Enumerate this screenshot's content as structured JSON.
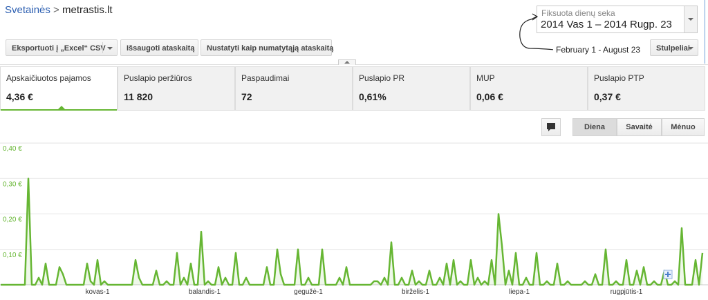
{
  "breadcrumb": {
    "parent": "Svetainės",
    "separator": ">",
    "current": "metrastis.lt"
  },
  "toolbar": {
    "export": "Eksportuoti į „Excel“ CSV",
    "save": "Išsaugoti ataskaitą",
    "set_default": "Nustatyti kaip numatytąją ataskaitą"
  },
  "date_range": {
    "label": "Fiksuota dienų seka",
    "value": "2014 Vas 1 – 2014 Rugp. 23"
  },
  "annotation": "February 1 - August 23",
  "columns_button": "Stulpeliai",
  "metrics": [
    {
      "label": "Apskaičiuotos pajamos",
      "value": "4,36 €"
    },
    {
      "label": "Puslapio peržiūros",
      "value": "11 820"
    },
    {
      "label": "Paspaudimai",
      "value": "72"
    },
    {
      "label": "Puslapio PR",
      "value": "0,61%"
    },
    {
      "label": "MUP",
      "value": "0,06 €"
    },
    {
      "label": "Puslapio PTP",
      "value": "0,37 €"
    }
  ],
  "granularity": [
    "Diena",
    "Savaitė",
    "Mėnuo"
  ],
  "chart_data": {
    "type": "line",
    "color": "#66b633",
    "grid": true,
    "ylim": [
      0,
      0.4
    ],
    "yticks": [
      {
        "value": 0.1,
        "label": "0,10 €"
      },
      {
        "value": 0.2,
        "label": "0,20 €"
      },
      {
        "value": 0.3,
        "label": "0,30 €"
      },
      {
        "value": 0.4,
        "label": "0,40 €"
      }
    ],
    "categories": [
      null,
      null,
      null,
      null,
      null,
      null,
      null,
      null,
      null,
      null,
      null,
      null,
      null,
      null,
      null,
      null,
      null,
      null,
      null,
      null,
      null,
      null,
      null,
      null,
      null,
      null,
      null,
      null,
      "kovas-1",
      null,
      null,
      null,
      null,
      null,
      null,
      null,
      null,
      null,
      null,
      null,
      null,
      null,
      null,
      null,
      null,
      null,
      null,
      null,
      null,
      null,
      null,
      null,
      null,
      null,
      null,
      null,
      null,
      null,
      null,
      "balandis-1",
      null,
      null,
      null,
      null,
      null,
      null,
      null,
      null,
      null,
      null,
      null,
      null,
      null,
      null,
      null,
      null,
      null,
      null,
      null,
      null,
      null,
      null,
      null,
      null,
      null,
      null,
      null,
      null,
      null,
      "gegužė-1",
      null,
      null,
      null,
      null,
      null,
      null,
      null,
      null,
      null,
      null,
      null,
      null,
      null,
      null,
      null,
      null,
      null,
      null,
      null,
      null,
      null,
      null,
      null,
      null,
      null,
      null,
      null,
      null,
      null,
      null,
      "birželis-1",
      null,
      null,
      null,
      null,
      null,
      null,
      null,
      null,
      null,
      null,
      null,
      null,
      null,
      null,
      null,
      null,
      null,
      null,
      null,
      null,
      null,
      null,
      null,
      null,
      null,
      null,
      null,
      null,
      null,
      "liepa-1",
      null,
      null,
      null,
      null,
      null,
      null,
      null,
      null,
      null,
      null,
      null,
      null,
      null,
      null,
      null,
      null,
      null,
      null,
      null,
      null,
      null,
      null,
      null,
      null,
      null,
      null,
      null,
      null,
      null,
      null,
      "rugpjūtis-1",
      null,
      null,
      null,
      null,
      null,
      null,
      null,
      null,
      null,
      null,
      null,
      null,
      null,
      null,
      null,
      null,
      null,
      null,
      null,
      null,
      null,
      null
    ],
    "values": [
      0,
      0,
      0,
      0,
      0,
      0,
      0,
      0,
      0.3,
      0,
      0,
      0.02,
      0,
      0.06,
      0,
      0,
      0,
      0.05,
      0.03,
      0,
      0,
      0,
      0,
      0,
      0,
      0.06,
      0.01,
      0,
      0.07,
      0,
      0.01,
      0,
      0,
      0,
      0,
      0,
      0,
      0,
      0,
      0.07,
      0.02,
      0,
      0,
      0,
      0,
      0.04,
      0,
      0,
      0.01,
      0,
      0,
      0.09,
      0,
      0.02,
      0,
      0.06,
      0,
      0,
      0.15,
      0,
      0.01,
      0,
      0,
      0.05,
      0,
      0.02,
      0,
      0,
      0.09,
      0,
      0,
      0.02,
      0,
      0,
      0,
      0,
      0,
      0.05,
      0,
      0,
      0.1,
      0.03,
      0,
      0,
      0,
      0,
      0.1,
      0,
      0,
      0.02,
      0,
      0,
      0,
      0.1,
      0,
      0,
      0,
      0,
      0.02,
      0,
      0.05,
      0,
      0,
      0,
      0,
      0,
      0,
      0,
      0.01,
      0.01,
      0,
      0.02,
      0,
      0.12,
      0,
      0,
      0.02,
      0,
      0,
      0.04,
      0,
      0.01,
      0,
      0,
      0.04,
      0,
      0,
      0.02,
      0,
      0.06,
      0,
      0.07,
      0,
      0.01,
      0,
      0,
      0.07,
      0,
      0.02,
      0,
      0.01,
      0,
      0.07,
      0,
      0.2,
      0.11,
      0,
      0.04,
      0,
      0.09,
      0,
      0,
      0.02,
      0,
      0,
      0.09,
      0,
      0,
      0.01,
      0,
      0,
      0.06,
      0,
      0,
      0.01,
      0,
      0,
      0,
      0,
      0.01,
      0,
      0,
      0.03,
      0,
      0,
      0.1,
      0,
      0,
      0.01,
      0,
      0,
      0.07,
      0,
      0,
      0.04,
      0,
      0.05,
      0,
      0,
      0.01,
      0,
      0,
      0.04,
      0,
      0,
      0.01,
      0,
      0.16,
      0,
      0,
      0,
      0.07,
      0,
      0.09
    ]
  }
}
